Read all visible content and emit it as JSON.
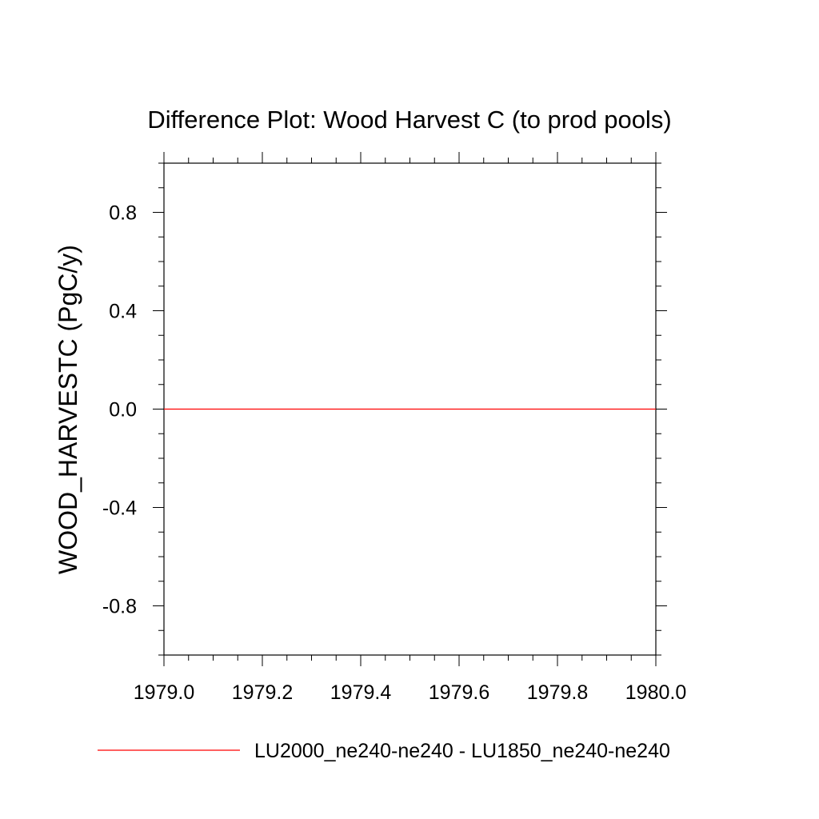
{
  "chart_data": {
    "type": "line",
    "title": "Difference Plot: Wood Harvest C (to prod pools)",
    "xlabel": "",
    "ylabel": "WOOD_HARVESTC  (PgC/y)",
    "xlim": [
      1979.0,
      1980.0
    ],
    "ylim": [
      -1.0,
      1.0
    ],
    "x_ticks": [
      1979.0,
      1979.2,
      1979.4,
      1979.6,
      1979.8,
      1980.0
    ],
    "x_tick_labels": [
      "1979.0",
      "1979.2",
      "1979.4",
      "1979.6",
      "1979.8",
      "1980.0"
    ],
    "y_ticks": [
      -0.8,
      -0.4,
      0.0,
      0.4,
      0.8
    ],
    "y_tick_labels": [
      "-0.8",
      "-0.4",
      "0.0",
      "0.4",
      "0.8"
    ],
    "grid": false,
    "legend_position": "bottom",
    "series": [
      {
        "name": "LU2000_ne240-ne240 - LU1850_ne240-ne240",
        "color": "#ff0000",
        "x": [
          1979.0,
          1980.0
        ],
        "y": [
          0.0,
          0.0
        ]
      }
    ]
  }
}
